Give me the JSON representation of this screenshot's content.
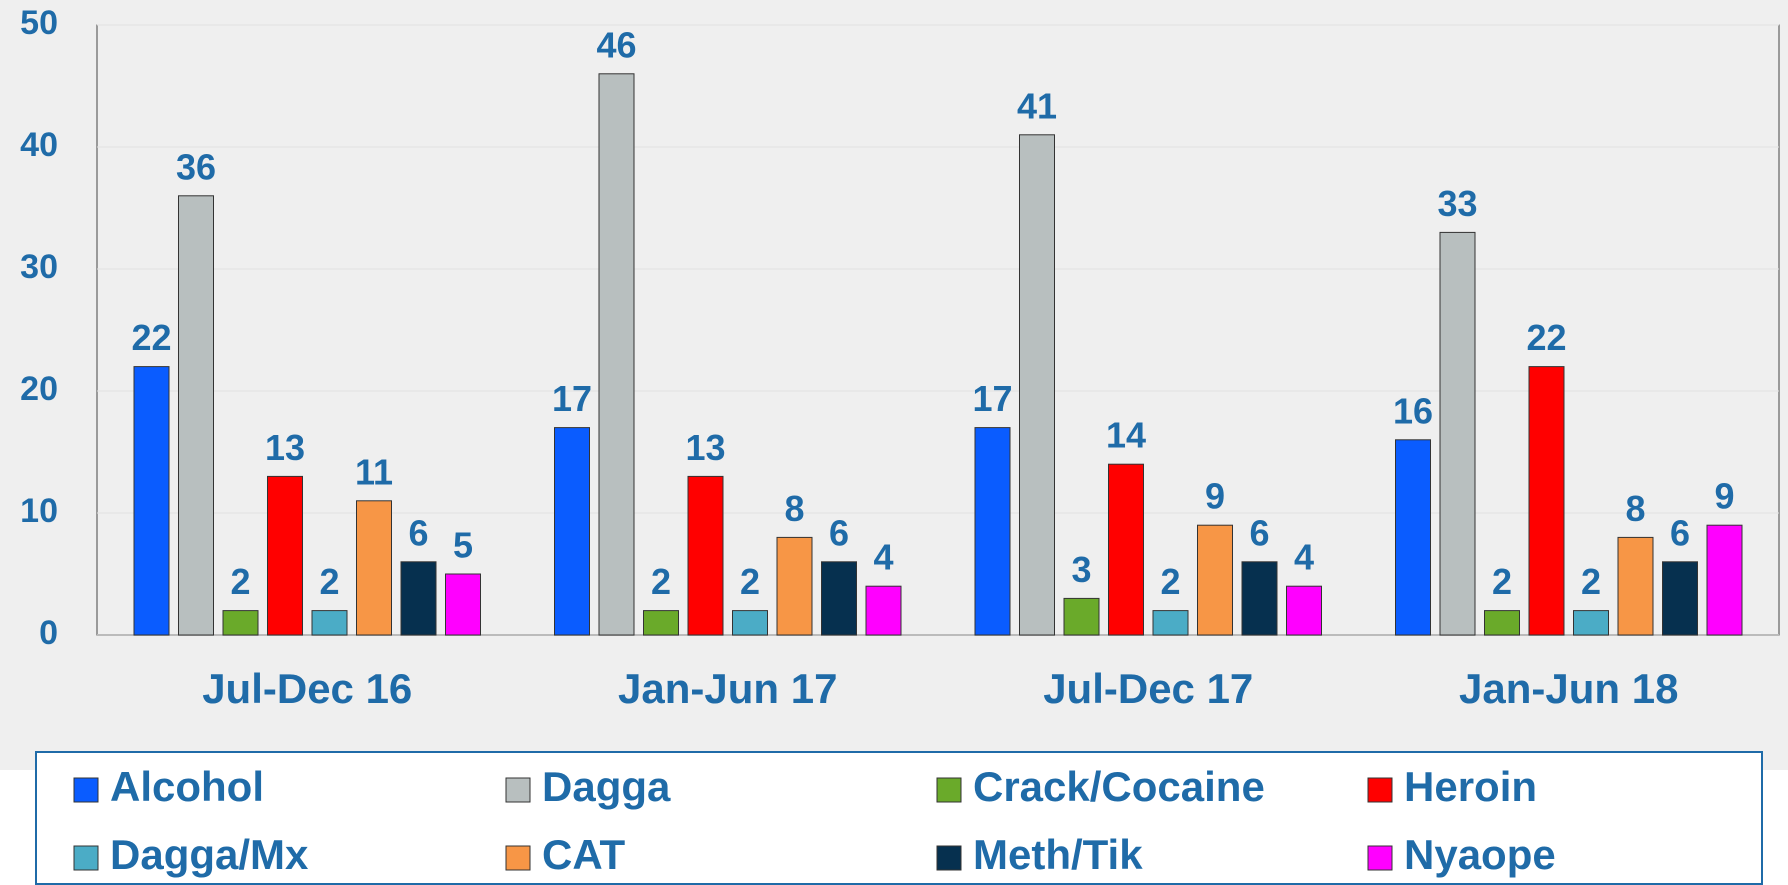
{
  "chart_data": {
    "type": "bar",
    "categories": [
      "Jul-Dec 16",
      "Jan-Jun 17",
      "Jul-Dec 17",
      "Jan-Jun 18"
    ],
    "series": [
      {
        "name": "Alcohol",
        "color": "#0a5cff",
        "values": [
          22,
          17,
          17,
          16
        ]
      },
      {
        "name": "Dagga",
        "color": "#b8bfbf",
        "values": [
          36,
          46,
          41,
          33
        ]
      },
      {
        "name": "Crack/Cocaine",
        "color": "#6aaa2a",
        "values": [
          2,
          2,
          3,
          2
        ]
      },
      {
        "name": "Heroin",
        "color": "#ff0000",
        "values": [
          13,
          13,
          14,
          22
        ]
      },
      {
        "name": "Dagga/Mx",
        "color": "#4bacc6",
        "values": [
          2,
          2,
          2,
          2
        ]
      },
      {
        "name": "CAT",
        "color": "#f79646",
        "values": [
          11,
          8,
          9,
          8
        ]
      },
      {
        "name": "Meth/Tik",
        "color": "#06304f",
        "values": [
          6,
          6,
          6,
          6
        ]
      },
      {
        "name": "Nyaope",
        "color": "#ff00ff",
        "values": [
          5,
          4,
          4,
          9
        ]
      }
    ],
    "ylim": [
      0,
      50
    ],
    "yticks": [
      0,
      10,
      20,
      30,
      40,
      50
    ],
    "grid": true,
    "legend": "bottom"
  }
}
